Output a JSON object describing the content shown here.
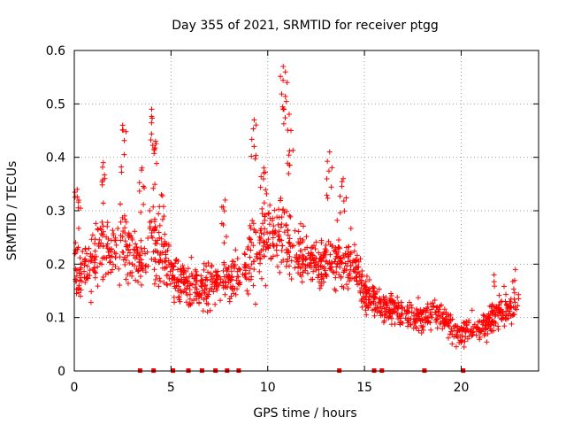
{
  "chart_data": {
    "type": "scatter",
    "title": "Day 355 of 2021, SRMTID for receiver ptgg",
    "xlabel": "GPS time / hours",
    "ylabel": "SRMTID / TECUs",
    "xlim": [
      0,
      24
    ],
    "ylim": [
      0,
      0.6
    ],
    "x_ticks": [
      0,
      5,
      10,
      15,
      20
    ],
    "x_tick_labels": [
      "0",
      "5",
      "10",
      "15",
      "20"
    ],
    "y_ticks": [
      0,
      0.1,
      0.2,
      0.3,
      0.4,
      0.5,
      0.6
    ],
    "y_tick_labels": [
      "0",
      "0.1",
      "0.2",
      "0.3",
      "0.4",
      "0.5",
      "0.6"
    ],
    "grid": true,
    "series_color": "#ff0000",
    "marker": "plus",
    "envelope": {
      "x": [
        0,
        0.5,
        1,
        1.5,
        2,
        2.5,
        3,
        3.5,
        4,
        4.5,
        5,
        5.5,
        6,
        6.5,
        7,
        7.5,
        8,
        8.5,
        9,
        9.5,
        10,
        10.5,
        11,
        11.5,
        12,
        12.5,
        13,
        13.5,
        14,
        14.5,
        15,
        15.5,
        16,
        16.5,
        17,
        17.5,
        18,
        18.5,
        19,
        19.5,
        20,
        20.5,
        21,
        21.5,
        22,
        22.5,
        22.8
      ],
      "center": [
        0.2,
        0.19,
        0.21,
        0.23,
        0.22,
        0.24,
        0.22,
        0.2,
        0.24,
        0.22,
        0.19,
        0.17,
        0.16,
        0.15,
        0.16,
        0.17,
        0.17,
        0.18,
        0.2,
        0.24,
        0.25,
        0.26,
        0.25,
        0.21,
        0.21,
        0.2,
        0.2,
        0.21,
        0.21,
        0.2,
        0.15,
        0.13,
        0.12,
        0.12,
        0.11,
        0.1,
        0.1,
        0.11,
        0.1,
        0.08,
        0.07,
        0.08,
        0.08,
        0.09,
        0.11,
        0.12,
        0.12
      ],
      "spread": [
        0.09,
        0.07,
        0.08,
        0.08,
        0.07,
        0.09,
        0.07,
        0.07,
        0.1,
        0.07,
        0.06,
        0.05,
        0.05,
        0.05,
        0.06,
        0.05,
        0.05,
        0.06,
        0.08,
        0.09,
        0.09,
        0.09,
        0.09,
        0.07,
        0.06,
        0.06,
        0.06,
        0.07,
        0.07,
        0.06,
        0.05,
        0.04,
        0.04,
        0.04,
        0.04,
        0.04,
        0.04,
        0.04,
        0.04,
        0.03,
        0.03,
        0.03,
        0.03,
        0.04,
        0.04,
        0.04,
        0.05
      ]
    },
    "peaks": [
      {
        "x": 0.15,
        "y": 0.34
      },
      {
        "x": 1.5,
        "y": 0.39
      },
      {
        "x": 2.5,
        "y": 0.46
      },
      {
        "x": 3.5,
        "y": 0.38
      },
      {
        "x": 4.0,
        "y": 0.49
      },
      {
        "x": 4.2,
        "y": 0.43
      },
      {
        "x": 4.5,
        "y": 0.33
      },
      {
        "x": 7.8,
        "y": 0.32
      },
      {
        "x": 9.3,
        "y": 0.47
      },
      {
        "x": 9.8,
        "y": 0.38
      },
      {
        "x": 10.8,
        "y": 0.57
      },
      {
        "x": 11.0,
        "y": 0.54
      },
      {
        "x": 11.2,
        "y": 0.45
      },
      {
        "x": 13.2,
        "y": 0.41
      },
      {
        "x": 13.9,
        "y": 0.36
      },
      {
        "x": 21.7,
        "y": 0.18
      },
      {
        "x": 22.8,
        "y": 0.19
      }
    ],
    "gap_markers_x": [
      3.4,
      4.1,
      5.1,
      5.9,
      6.6,
      7.3,
      7.9,
      8.5,
      13.7,
      15.5,
      15.9,
      18.1,
      20.1
    ]
  }
}
